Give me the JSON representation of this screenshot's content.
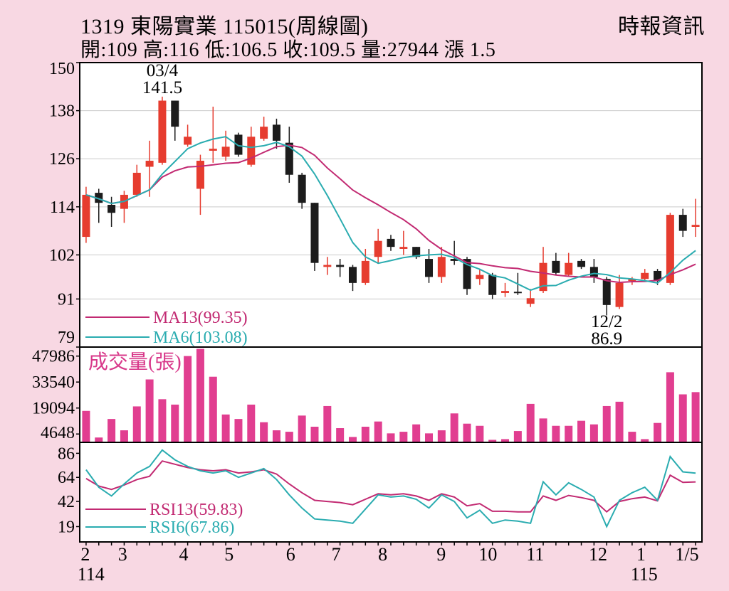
{
  "header": {
    "title": "1319 東陽實業 115015(周線圖)",
    "source": "時報資訊",
    "ohlc_line": "開:109 高:116 低:106.5 收:109.5 量:27944 漲 1.5"
  },
  "colors": {
    "background": "#f8d8e3",
    "plot_bg": "#ffffff",
    "border": "#000000",
    "grid": "#c9c9c9",
    "up_candle": "#e63c2f",
    "down_candle": "#1c1c1c",
    "ma13": "#c22a72",
    "ma6": "#2aacb0",
    "volume_bar": "#e13e90",
    "volume_label": "#d8388a",
    "rsi13": "#c22a72",
    "rsi6": "#2aacb0",
    "text": "#000000"
  },
  "chart_data": {
    "type": "candlestick",
    "title": "1319 東陽實業 115015(周線圖)",
    "price_axis": {
      "ticks": [
        150,
        138,
        126,
        114,
        102,
        91,
        79
      ],
      "range": [
        79,
        150
      ],
      "grid_ticks": [
        138,
        126,
        114,
        102,
        91
      ]
    },
    "candles": [
      [
        106.5,
        119,
        105,
        117
      ],
      [
        117.5,
        118.5,
        110,
        115
      ],
      [
        114.5,
        116.5,
        109,
        112.5
      ],
      [
        113.5,
        118,
        110,
        117
      ],
      [
        117,
        124.5,
        116.5,
        122.5
      ],
      [
        124,
        130.5,
        116.5,
        125.5
      ],
      [
        125,
        141.5,
        124.5,
        140.5
      ],
      [
        140.5,
        140.5,
        130.5,
        134
      ],
      [
        129.5,
        134.5,
        129,
        131.5
      ],
      [
        118.5,
        127,
        112,
        125.5
      ],
      [
        128,
        139,
        125,
        128.5
      ],
      [
        126.5,
        133,
        125.5,
        129
      ],
      [
        132,
        132.5,
        126.5,
        127
      ],
      [
        124.5,
        134,
        124,
        131.5
      ],
      [
        131,
        136.5,
        130.5,
        134
      ],
      [
        134.5,
        136,
        128.5,
        130.5
      ],
      [
        130,
        134,
        120,
        122
      ],
      [
        122,
        122.5,
        113.5,
        115
      ],
      [
        115,
        115,
        98,
        100
      ],
      [
        99,
        101.5,
        97,
        99.5
      ],
      [
        99.5,
        101,
        96.5,
        99
      ],
      [
        99,
        99.5,
        93,
        95
      ],
      [
        95,
        103.5,
        94.5,
        100.5
      ],
      [
        101.5,
        108.5,
        100,
        105.5
      ],
      [
        106,
        107,
        103,
        104
      ],
      [
        103.5,
        108,
        102,
        104
      ],
      [
        104,
        104,
        101,
        101.5
      ],
      [
        101,
        103.5,
        95,
        96.5
      ],
      [
        96.5,
        104,
        95,
        101.5
      ],
      [
        101,
        105.5,
        99.5,
        100.5
      ],
      [
        101,
        101.5,
        92,
        93.5
      ],
      [
        96,
        98.5,
        94.5,
        97
      ],
      [
        97,
        97.5,
        91,
        92
      ],
      [
        92.5,
        95,
        91.5,
        93
      ],
      [
        92.8,
        97.5,
        92,
        92.5
      ],
      [
        89.8,
        93.5,
        89,
        91.2
      ],
      [
        93,
        104,
        92.5,
        100
      ],
      [
        100.5,
        102.5,
        97,
        97.5
      ],
      [
        97,
        102.5,
        96.5,
        100
      ],
      [
        100.5,
        101,
        98.5,
        99
      ],
      [
        99,
        101,
        95,
        96.5
      ],
      [
        96,
        96.5,
        86.9,
        89.5
      ],
      [
        89,
        97,
        88.5,
        95
      ],
      [
        95.5,
        96.5,
        94.5,
        96
      ],
      [
        96,
        98.5,
        95.5,
        97.5
      ],
      [
        98,
        98.5,
        94.5,
        95.5
      ],
      [
        95,
        112.5,
        94.5,
        112
      ],
      [
        112,
        113.5,
        106.5,
        108
      ],
      [
        109,
        116,
        106.5,
        109.5
      ]
    ],
    "annotations": [
      {
        "lines": [
          "03/4",
          "141.5"
        ],
        "week": 7,
        "placement": "above"
      },
      {
        "lines": [
          "12/2",
          "86.9"
        ],
        "week": 42,
        "placement": "below"
      }
    ],
    "ma": [
      {
        "label": "MA13(99.35)",
        "period": 13,
        "value": 99.35,
        "color_key": "ma13"
      },
      {
        "label": "MA6(103.08)",
        "period": 6,
        "value": 103.08,
        "color_key": "ma6"
      }
    ],
    "volume": {
      "label": "成交量(張)",
      "ticks": [
        47986,
        33540,
        19094,
        4648
      ],
      "max": 53000,
      "values": [
        17500,
        2700,
        13000,
        6700,
        20000,
        35000,
        24000,
        21000,
        48000,
        52000,
        36500,
        15500,
        13000,
        21000,
        11200,
        6700,
        5900,
        14900,
        8700,
        20200,
        7900,
        3000,
        8700,
        11600,
        5000,
        5900,
        10000,
        5000,
        6700,
        16100,
        10400,
        9200,
        1400,
        1800,
        6300,
        21400,
        13300,
        9200,
        9200,
        12000,
        10000,
        20200,
        22600,
        5900,
        1800,
        10800,
        39000,
        26700,
        27944
      ]
    },
    "rsi": {
      "ticks": [
        86,
        64,
        42,
        19
      ],
      "range": [
        5,
        96
      ],
      "series": [
        {
          "label": "RSI13(59.83)",
          "color_key": "rsi13",
          "values": [
            63,
            56,
            53,
            57,
            62,
            65,
            79,
            76,
            73,
            71,
            70,
            71,
            68,
            69,
            71,
            67,
            58,
            50,
            43,
            42,
            41,
            39,
            44,
            49,
            48,
            49,
            47,
            43,
            49,
            46,
            38,
            40,
            33,
            33,
            32.5,
            32.5,
            47,
            43,
            47.5,
            45.5,
            43,
            32.5,
            42,
            44.5,
            46,
            42.5,
            66,
            59.5,
            59.83
          ]
        },
        {
          "label": "RSI6(67.86)",
          "color_key": "rsi6",
          "values": [
            71,
            55,
            47,
            58,
            68,
            74,
            89,
            80,
            74,
            70,
            68,
            70,
            64,
            68,
            72,
            62,
            48,
            36,
            26,
            25,
            24,
            22,
            35,
            48,
            46,
            47,
            44,
            36,
            48,
            42,
            27,
            34,
            22,
            25,
            24,
            22,
            60,
            48,
            59,
            53,
            46,
            19,
            43,
            50,
            55,
            43,
            83,
            69,
            67.86
          ]
        }
      ]
    },
    "x_axis": {
      "months": [
        {
          "label": "2",
          "pos": 0.009
        },
        {
          "label": "3",
          "pos": 0.069
        },
        {
          "label": "4",
          "pos": 0.167
        },
        {
          "label": "5",
          "pos": 0.24
        },
        {
          "label": "6",
          "pos": 0.339
        },
        {
          "label": "7",
          "pos": 0.412
        },
        {
          "label": "8",
          "pos": 0.487
        },
        {
          "label": "9",
          "pos": 0.581
        },
        {
          "label": "10",
          "pos": 0.656
        },
        {
          "label": "11",
          "pos": 0.732
        },
        {
          "label": "12",
          "pos": 0.833
        },
        {
          "label": "1",
          "pos": 0.902
        },
        {
          "label": "1/5",
          "pos": 0.976
        }
      ],
      "years": [
        {
          "label": "114",
          "pos": 0.018
        },
        {
          "label": "115",
          "pos": 0.907
        }
      ]
    }
  }
}
